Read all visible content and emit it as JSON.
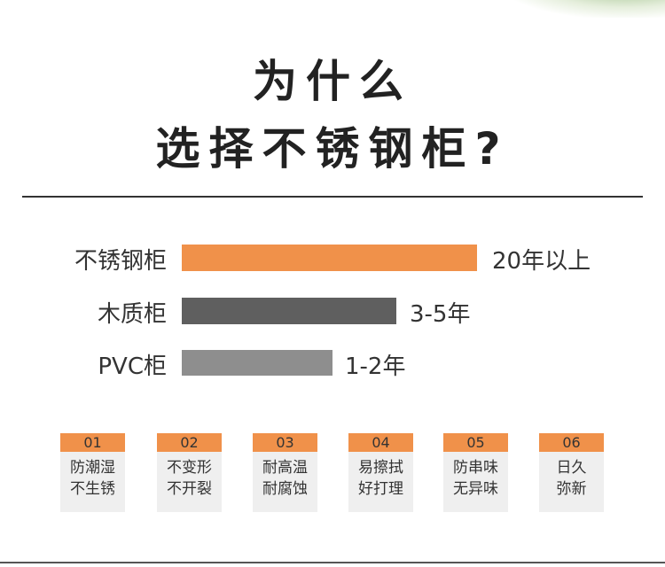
{
  "title": {
    "line1": "为什么",
    "line2": "选择不锈钢柜?"
  },
  "comparison": [
    {
      "label": "不锈钢柜",
      "value": "20年以上",
      "color": "#f0914a"
    },
    {
      "label": "木质柜",
      "value": "3-5年",
      "color": "#5f5f5f"
    },
    {
      "label": "PVC柜",
      "value": "1-2年",
      "color": "#8e8e8e"
    }
  ],
  "features": [
    {
      "num": "01",
      "line1": "防潮湿",
      "line2": "不生锈"
    },
    {
      "num": "02",
      "line1": "不变形",
      "line2": "不开裂"
    },
    {
      "num": "03",
      "line1": "耐高温",
      "line2": "耐腐蚀"
    },
    {
      "num": "04",
      "line1": "易擦拭",
      "line2": "好打理"
    },
    {
      "num": "05",
      "line1": "防串味",
      "line2": "无异味"
    },
    {
      "num": "06",
      "line1": "日久",
      "line2": "弥新"
    }
  ],
  "colors": {
    "accent": "#f0914a",
    "card_bg": "#efefef"
  }
}
